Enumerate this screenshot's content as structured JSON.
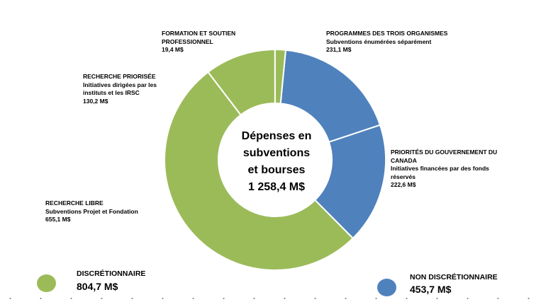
{
  "colors": {
    "discretionary": "#9bbb59",
    "non_discretionary": "#4f81bd"
  },
  "center": {
    "line1": "Dépenses en",
    "line2": "subventions",
    "line3": "et bourses",
    "total": "1 258,4 M$"
  },
  "labels": {
    "formation": {
      "name1": "FORMATION ET SOUTIEN",
      "name2": "PROFESSIONNEL",
      "value": "19,4 M$"
    },
    "programmes": {
      "name": "PROGRAMMES DES TROIS ORGANISMES",
      "desc": "Subventions énumérées séparément",
      "value": "231,1 M$"
    },
    "priorisee": {
      "name": "RECHERCHE PRIORISÉE",
      "desc1": "Initiatives dirigées par les",
      "desc2": "instituts et les IRSC",
      "value": "130,2 M$"
    },
    "priorites": {
      "name1": "PRIORITÉS DU GOUVERNEMENT DU",
      "name2": "CANADA",
      "desc1": "Initiatives financées par des fonds",
      "desc2": "réservés",
      "value": "222,6 M$"
    },
    "libre": {
      "name": "RECHERCHE LIBRE",
      "desc": "Subventions Projet et Fondation",
      "value": "655,1 M$"
    }
  },
  "legend": {
    "discretionary": {
      "label": "DISCRÉTIONNAIRE",
      "value": "804,7 M$"
    },
    "non_discretionary": {
      "label": "NON DISCRÉTIONNAIRE",
      "value": "453,7 M$"
    }
  },
  "chart_data": {
    "type": "pie",
    "donut": true,
    "total": 1258.4,
    "unit": "M$",
    "slices": [
      {
        "name": "PROGRAMMES DES TROIS ORGANISMES",
        "value": 231.1,
        "group": "non_discretionary"
      },
      {
        "name": "PRIORITÉS DU GOUVERNEMENT DU CANADA",
        "value": 222.6,
        "group": "non_discretionary"
      },
      {
        "name": "RECHERCHE LIBRE",
        "value": 655.1,
        "group": "discretionary"
      },
      {
        "name": "RECHERCHE PRIORISÉE",
        "value": 130.2,
        "group": "discretionary"
      },
      {
        "name": "FORMATION ET SOUTIEN PROFESSIONNEL",
        "value": 19.4,
        "group": "discretionary"
      }
    ],
    "legend_position": "bottom"
  }
}
